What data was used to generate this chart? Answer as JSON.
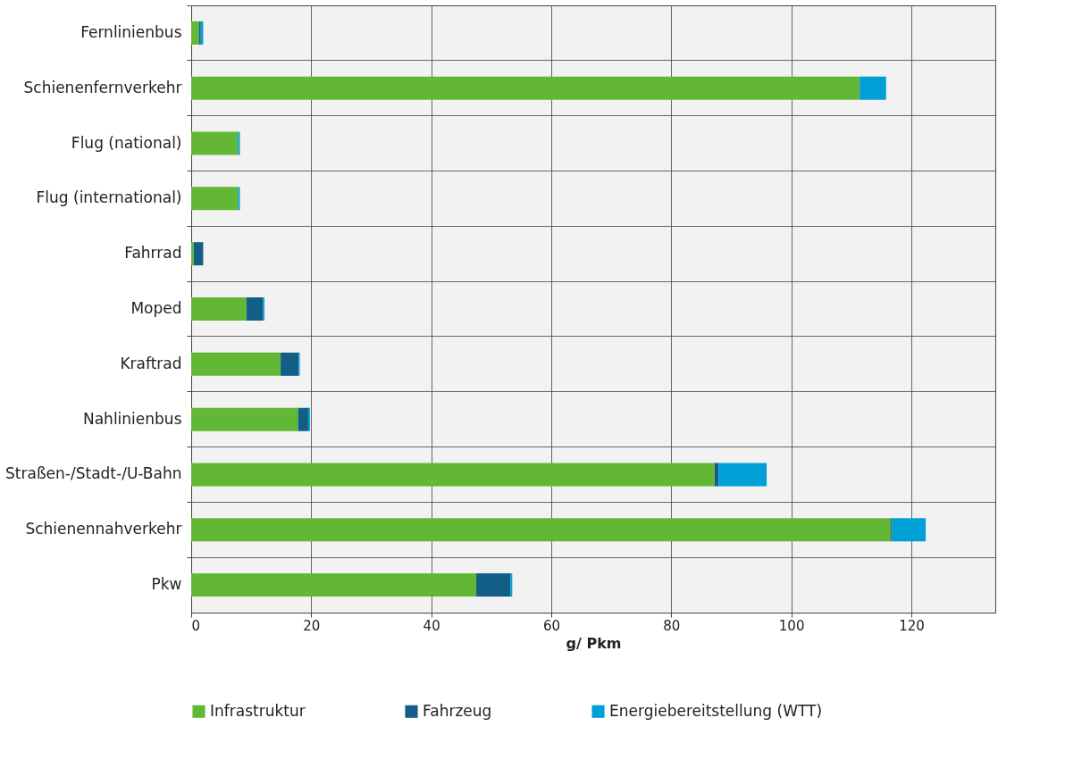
{
  "chart_data": {
    "type": "bar",
    "orientation": "horizontal",
    "stacked": true,
    "xlabel": "g/ Pkm",
    "categories": [
      "Fernlinienbus",
      "Schienenfernverkehr",
      "Flug (national)",
      "Flug (international)",
      "Fahrrad",
      "Moped",
      "Kraftrad",
      "Nahlinienbus",
      "Straßen-/Stadt-/U-Bahn",
      "Schienennahverkehr",
      "Pkw"
    ],
    "series": [
      {
        "name": "Infrastruktur",
        "color": "#62b835",
        "values": [
          1.3,
          111.4,
          7.8,
          7.8,
          0.4,
          9.2,
          14.9,
          17.8,
          87.2,
          116.6,
          47.5
        ]
      },
      {
        "name": "Fahrzeug",
        "color": "#135e87",
        "values": [
          0.3,
          0,
          0,
          0,
          1.6,
          2.8,
          3.0,
          1.7,
          0.7,
          0.2,
          5.7
        ]
      },
      {
        "name": "Energiebereitstellung (WTT)",
        "color": "#009fd6",
        "values": [
          0.4,
          4.4,
          0.3,
          0.3,
          0,
          0.2,
          0.2,
          0.3,
          8.0,
          5.6,
          0.3
        ]
      }
    ],
    "xlim": [
      0,
      134
    ],
    "xticks": [
      0,
      20,
      40,
      60,
      80,
      100,
      120
    ],
    "grid": true,
    "legend": "bottom"
  }
}
